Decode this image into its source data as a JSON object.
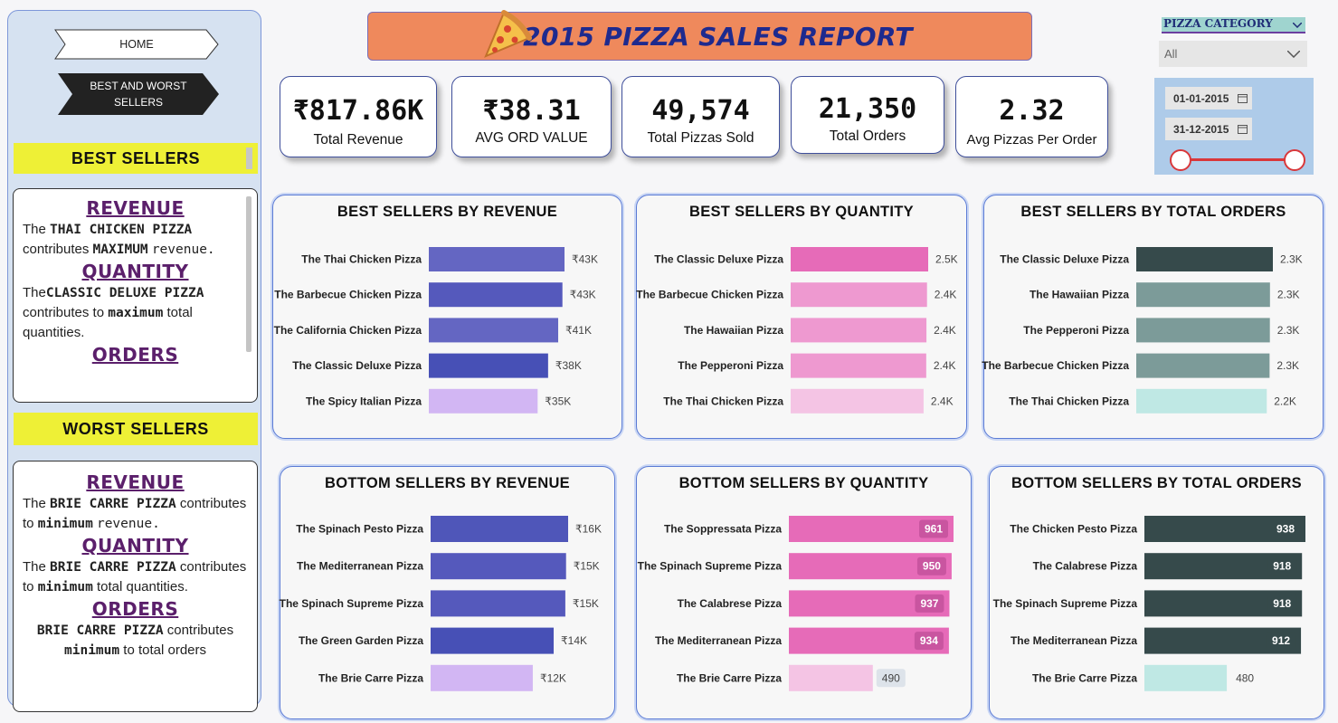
{
  "nav": {
    "home": "HOME",
    "best_worst": "BEST AND WORST SELLERS"
  },
  "sidebar": {
    "best_title": "BEST SELLERS",
    "worst_title": "WORST SELLERS",
    "best": {
      "revenue_head": "REVENUE",
      "revenue_the": "The",
      "revenue_pizza": "THAI  CHICKEN PIZZA",
      "revenue_contrib": "contributes",
      "revenue_max": "MAXIMUM",
      "revenue_word": "revenue.",
      "quantity_head": "QUANTITY",
      "quantity_the": "The",
      "quantity_pizza": "CLASSIC DELUXE PIZZA",
      "quantity_contrib": "contributes to",
      "quantity_max": "maximum",
      "quantity_tail": "total quantities.",
      "orders_head": "ORDERS"
    },
    "worst": {
      "revenue_head": "REVENUE",
      "revenue_the": "The",
      "revenue_pizza": "BRIE CARRE PIZZA",
      "revenue_contrib": "contributes to",
      "revenue_min": "minimum",
      "revenue_word": "revenue.",
      "quantity_head": "QUANTITY",
      "quantity_the": "The",
      "quantity_pizza": "BRIE CARRE PIZZA",
      "quantity_contrib": "contributes to",
      "quantity_min": "minimum",
      "quantity_tail": "total quantities.",
      "orders_head": "ORDERS",
      "orders_pizza": "BRIE CARRE PIZZA",
      "orders_contrib": "contributes",
      "orders_min": "minimum",
      "orders_tail": "to total orders"
    }
  },
  "header": {
    "title": "2015 PIZZA SALES REPORT",
    "icon": "pizza-icon"
  },
  "kpis": [
    {
      "value": "₹817.86K",
      "label": "Total Revenue"
    },
    {
      "value": "₹38.31",
      "label": "AVG ORD VALUE"
    },
    {
      "value": "49,574",
      "label": "Total Pizzas Sold"
    },
    {
      "value": "21,350",
      "label": "Total Orders"
    },
    {
      "value": "2.32",
      "label": "Avg Pizzas Per Order"
    }
  ],
  "filters": {
    "category_label": "PIZZA CATEGORY",
    "category_value": "All",
    "date_start": "01-01-2015",
    "date_end": "31-12-2015",
    "slider_start": 0,
    "slider_end": 1
  },
  "colors": {
    "accent_header": "#ef895c",
    "banner": "#eef036",
    "title": "#1e2a8e"
  },
  "chart_data": [
    {
      "type": "bar",
      "orientation": "horizontal",
      "title": "BEST SELLERS BY REVENUE",
      "categories": [
        "The Thai Chicken Pizza",
        "The Barbecue Chicken Pizza",
        "The California Chicken Pizza",
        "The Classic Deluxe Pizza",
        "The Spicy Italian Pizza"
      ],
      "values": [
        43434,
        42768,
        41410,
        38180,
        34831
      ],
      "labels": [
        "₹43K",
        "₹43K",
        "₹41K",
        "₹38K",
        "₹35K"
      ],
      "colors": [
        "#6466c2",
        "#5559bc",
        "#6466c2",
        "#4750b6",
        "#d2b6f3"
      ],
      "xlim": [
        0,
        43434
      ]
    },
    {
      "type": "bar",
      "orientation": "horizontal",
      "title": "BEST SELLERS BY QUANTITY",
      "categories": [
        "The Classic Deluxe Pizza",
        "The Barbecue Chicken Pizza",
        "The Hawaiian Pizza",
        "The Pepperoni Pizza",
        "The Thai Chicken Pizza"
      ],
      "values": [
        2453,
        2432,
        2422,
        2418,
        2371
      ],
      "labels": [
        "2.5K",
        "2.4K",
        "2.4K",
        "2.4K",
        "2.4K"
      ],
      "colors": [
        "#e66bb8",
        "#ee99d0",
        "#ee99d0",
        "#ee99d0",
        "#f4c4e4"
      ],
      "xlim": [
        0,
        2453
      ]
    },
    {
      "type": "bar",
      "orientation": "horizontal",
      "title": "BEST SELLERS BY TOTAL ORDERS",
      "categories": [
        "The Classic Deluxe Pizza",
        "The Hawaiian Pizza",
        "The Pepperoni Pizza",
        "The Barbecue Chicken Pizza",
        "The Thai Chicken Pizza"
      ],
      "values": [
        2329,
        2280,
        2278,
        2273,
        2225
      ],
      "labels": [
        "2.3K",
        "2.3K",
        "2.3K",
        "2.3K",
        "2.2K"
      ],
      "colors": [
        "#364a4b",
        "#7c9b99",
        "#7c9b99",
        "#7c9b99",
        "#bfe8e4"
      ],
      "xlim": [
        0,
        2329
      ]
    },
    {
      "type": "bar",
      "orientation": "horizontal",
      "title": "BOTTOM SELLERS BY REVENUE",
      "categories": [
        "The Spinach Pesto Pizza",
        "The Mediterranean Pizza",
        "The Spinach Supreme Pizza",
        "The Green Garden Pizza",
        "The Brie Carre Pizza"
      ],
      "values": [
        15596,
        15361,
        15278,
        13956,
        11588
      ],
      "labels": [
        "₹16K",
        "₹15K",
        "₹15K",
        "₹14K",
        "₹12K"
      ],
      "colors": [
        "#4f56b9",
        "#5559bc",
        "#5559bc",
        "#4750b6",
        "#d2b6f3"
      ],
      "xlim": [
        0,
        15596
      ]
    },
    {
      "type": "bar",
      "orientation": "horizontal",
      "title": "BOTTOM SELLERS BY QUANTITY",
      "categories": [
        "The Soppressata Pizza",
        "The Spinach Supreme Pizza",
        "The Calabrese Pizza",
        "The Mediterranean Pizza",
        "The Brie Carre Pizza"
      ],
      "values": [
        961,
        950,
        937,
        934,
        490
      ],
      "labels": [
        "961",
        "950",
        "937",
        "934",
        "490"
      ],
      "colors": [
        "#e66bb8",
        "#e66bb8",
        "#e66bb8",
        "#e66bb8",
        "#f4c4e4"
      ],
      "xlim": [
        0,
        961
      ]
    },
    {
      "type": "bar",
      "orientation": "horizontal",
      "title": "BOTTOM SELLERS BY TOTAL ORDERS",
      "categories": [
        "The Chicken Pesto Pizza",
        "The Calabrese Pizza",
        "The Spinach Supreme Pizza",
        "The Mediterranean Pizza",
        "The Brie Carre Pizza"
      ],
      "values": [
        938,
        918,
        918,
        912,
        480
      ],
      "labels": [
        "938",
        "918",
        "918",
        "912",
        "480"
      ],
      "colors": [
        "#364a4b",
        "#364a4b",
        "#364a4b",
        "#364a4b",
        "#bfe8e4"
      ],
      "xlim": [
        0,
        938
      ]
    }
  ]
}
